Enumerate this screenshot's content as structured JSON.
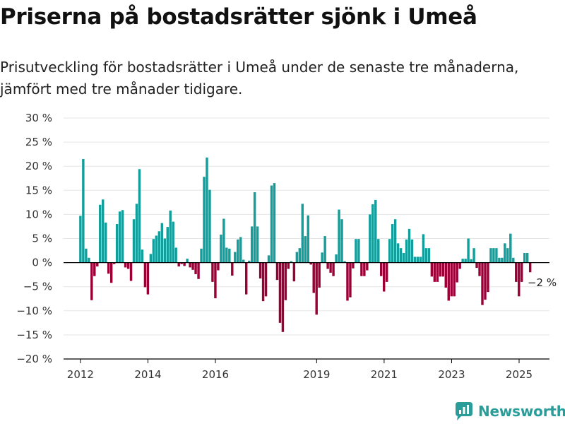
{
  "title": "Priserna på bostadsrätter sjönk i Umeå",
  "subtitle": "Prisutveckling för bostadsrätter i Umeå under de senaste tre månaderna, jämfört med tre månader tidigare.",
  "brand": {
    "name": "Newsworthy",
    "icon": "newsworthy-logo-icon",
    "color": "#2a9d9a"
  },
  "colors": {
    "positive": "#139e9b",
    "negative": "#9a0036",
    "grid": "#e5e5e5",
    "axis": "#000000"
  },
  "chart_data": {
    "type": "bar",
    "title": "",
    "xlabel": "",
    "ylabel": "",
    "ylim": [
      -20,
      30
    ],
    "xlim": [
      2011.5,
      2025.9
    ],
    "ytick_values": [
      30,
      25,
      20,
      15,
      10,
      5,
      0,
      -5,
      -10,
      -15,
      -20
    ],
    "ytick_labels": [
      "30 %",
      "25 %",
      "20 %",
      "15 %",
      "10 %",
      "5 %",
      "0 %",
      "−5 %",
      "−10 %",
      "−15 %",
      "−20 %"
    ],
    "xtick_values": [
      2012,
      2014,
      2016,
      2019,
      2021,
      2023,
      2025
    ],
    "xtick_labels": [
      "2012",
      "2014",
      "2016",
      "2019",
      "2021",
      "2023",
      "2025"
    ],
    "x_start": 2012.0,
    "x_step": 0.0833,
    "values": [
      9.7,
      21.5,
      2.9,
      1.0,
      -7.8,
      -2.8,
      -0.8,
      12.0,
      13.1,
      8.3,
      -2.3,
      -4.2,
      -0.3,
      8.0,
      10.6,
      10.9,
      -1.0,
      -1.3,
      -3.8,
      9.0,
      12.2,
      19.4,
      2.7,
      -5.1,
      -6.6,
      1.8,
      4.9,
      5.6,
      6.5,
      8.2,
      5.0,
      7.4,
      10.8,
      8.5,
      3.1,
      -0.8,
      -0.3,
      -0.7,
      0.8,
      -1.0,
      -1.5,
      -2.4,
      -3.4,
      2.9,
      17.8,
      21.8,
      15.1,
      -4.0,
      -7.4,
      -1.6,
      5.8,
      9.1,
      3.1,
      2.9,
      -2.7,
      2.2,
      4.8,
      5.3,
      0.6,
      -6.6,
      0.4,
      7.5,
      14.6,
      7.5,
      -3.3,
      -8.0,
      -7.0,
      1.5,
      16.0,
      16.5,
      -3.6,
      -12.5,
      -14.4,
      -7.8,
      -1.3,
      0.3,
      -3.9,
      2.2,
      3.0,
      12.2,
      5.5,
      9.8,
      -0.4,
      -6.3,
      -10.8,
      -5.2,
      2.1,
      5.5,
      -1.3,
      -2.1,
      -2.8,
      1.7,
      11.0,
      9.0,
      0.3,
      -7.9,
      -7.2,
      -1.2,
      4.9,
      4.9,
      -2.8,
      -2.8,
      -1.6,
      10.0,
      12.1,
      13.0,
      4.9,
      -2.8,
      -6.0,
      -4.0,
      4.9,
      8.0,
      9.0,
      4.0,
      3.0,
      2.0,
      4.8,
      7.0,
      4.8,
      1.2,
      1.2,
      1.2,
      5.9,
      3.0,
      3.0,
      -2.9,
      -4.0,
      -4.0,
      -2.9,
      -2.9,
      -5.2,
      -7.9,
      -7.0,
      -7.0,
      -4.1,
      -1.3,
      0.8,
      0.8,
      5.0,
      0.7,
      3.0,
      -1.1,
      -2.8,
      -8.8,
      -7.7,
      -6.1,
      3.0,
      3.0,
      3.0,
      1.0,
      1.0,
      4.0,
      3.0,
      6.0,
      1.0,
      -4.0,
      -7.0,
      -4.0,
      2.0,
      2.0,
      -2.0
    ],
    "annotations": [
      {
        "text": "−2 %",
        "x": 2025.25,
        "y": -4.9
      }
    ],
    "grid": true,
    "legend": "none"
  }
}
